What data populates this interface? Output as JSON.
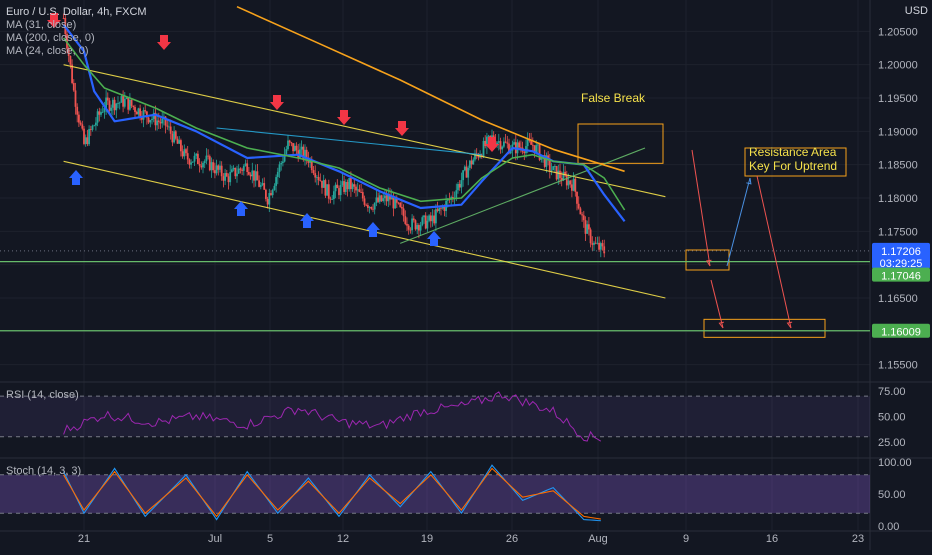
{
  "header": {
    "symbol_title": "Euro / U.S. Dollar, 4h, FXCM",
    "currency": "USD"
  },
  "legend": {
    "ma1": "MA (31, close)",
    "ma2": "MA (200, close, 0)",
    "ma3": "MA (24, close, 0)"
  },
  "price_axis": {
    "ticks": [
      "1.20500",
      "1.20000",
      "1.19500",
      "1.19000",
      "1.18500",
      "1.18000",
      "1.17500",
      "1.17000",
      "1.16500",
      "1.16000",
      "1.15500"
    ],
    "current_price": "1.17206",
    "countdown": "03:29:25",
    "support_1": "1.17046",
    "support_2": "1.16009"
  },
  "time_axis": {
    "labels": [
      "21",
      "Jul",
      "5",
      "12",
      "19",
      "26",
      "Aug",
      "9",
      "16",
      "23"
    ]
  },
  "annotations": {
    "false_break": "False Break",
    "resistance_1": "Resistance Area",
    "resistance_2": "Key For Uptrend"
  },
  "rsi": {
    "label": "RSI (14, close)",
    "ticks": [
      "75.00",
      "50.00",
      "25.00"
    ]
  },
  "stoch": {
    "label": "Stoch (14, 3, 3)",
    "ticks": [
      "100.00",
      "50.00",
      "0.00"
    ]
  },
  "colors": {
    "background": "#131722",
    "up_candle": "#26a69a",
    "down_candle": "#ef5350",
    "ma_fast": "#2962ff",
    "ma_slow": "#f7a21b",
    "ma_mid": "#4caf50",
    "channel": "#f5e14b",
    "support": "#66bb6a",
    "rsi_line": "#9c27b0",
    "stoch_k": "#2196f3",
    "stoch_d": "#ff6d00"
  },
  "chart_data": {
    "type": "candlestick",
    "symbol": "EURUSD",
    "timeframe": "4h",
    "ylim": [
      1.153,
      1.2085
    ],
    "ma_lines": [
      {
        "name": "MA (31, close)",
        "color": "#2962ff",
        "x": [
          "Jun 19",
          "Jun 21",
          "Jun 22",
          "Jun 24",
          "Jun 28",
          "Jul 2",
          "Jul 7",
          "Jul 12",
          "Jul 16",
          "Jul 20",
          "Jul 24",
          "Jul 28",
          "Jul 30",
          "Aug 2",
          "Aug 4",
          "Aug 6",
          "Aug 9",
          "Aug 11",
          "Aug 13"
        ],
        "y": [
          1.206,
          1.202,
          1.196,
          1.1915,
          1.1925,
          1.19,
          1.186,
          1.1865,
          1.184,
          1.181,
          1.1785,
          1.179,
          1.1825,
          1.1875,
          1.187,
          1.1855,
          1.185,
          1.1805,
          1.1765
        ]
      },
      {
        "name": "MA (24, close, 0)",
        "color": "#4caf50",
        "x": [
          "Jun 19",
          "Jun 21",
          "Jun 23",
          "Jun 28",
          "Jul 2",
          "Jul 7",
          "Jul 12",
          "Jul 16",
          "Jul 20",
          "Jul 24",
          "Jul 28",
          "Jul 30",
          "Aug 2",
          "Aug 4",
          "Aug 6",
          "Aug 9",
          "Aug 11",
          "Aug 13"
        ],
        "y": [
          1.204,
          1.2,
          1.1965,
          1.1935,
          1.1905,
          1.1875,
          1.186,
          1.1845,
          1.1815,
          1.1795,
          1.18,
          1.183,
          1.186,
          1.1865,
          1.1855,
          1.185,
          1.183,
          1.1782
        ]
      },
      {
        "name": "MA (200, close, 0)",
        "color": "#f7a21b",
        "x": [
          "Jul 6",
          "Jul 14",
          "Jul 22",
          "Jul 30",
          "Aug 6",
          "Aug 13"
        ],
        "y": [
          1.2087,
          1.2032,
          1.1977,
          1.1917,
          1.1873,
          1.184
        ]
      }
    ],
    "trendlines": [
      {
        "name": "upper channel",
        "x": [
          "Jun 19",
          "Aug 17"
        ],
        "y": [
          1.2,
          1.1802
        ]
      },
      {
        "name": "lower channel",
        "x": [
          "Jun 19",
          "Aug 17"
        ],
        "y": [
          1.1855,
          1.165
        ]
      },
      {
        "name": "inner resistance",
        "x": [
          "Jul 4",
          "Jul 30"
        ],
        "y": [
          1.1905,
          1.1865
        ]
      },
      {
        "name": "rising support",
        "x": [
          "Jul 22",
          "Aug 15"
        ],
        "y": [
          1.1732,
          1.1875
        ]
      }
    ],
    "horizontal_levels": [
      1.17046,
      1.16009
    ],
    "close_path": {
      "x": [
        "Jun 19",
        "Jun 20",
        "Jun 21",
        "Jun 23",
        "Jun 25",
        "Jun 27",
        "Jun 29",
        "Jul 1",
        "Jul 3",
        "Jul 5",
        "Jul 7",
        "Jul 9",
        "Jul 11",
        "Jul 13",
        "Jul 15",
        "Jul 17",
        "Jul 19",
        "Jul 21",
        "Jul 23",
        "Jul 25",
        "Jul 27",
        "Jul 29",
        "Jul 31",
        "Aug 2",
        "Aug 4",
        "Aug 6",
        "Aug 8",
        "Aug 9",
        "Aug 10",
        "Aug 11"
      ],
      "y": [
        1.207,
        1.196,
        1.188,
        1.194,
        1.1945,
        1.1925,
        1.191,
        1.186,
        1.1855,
        1.183,
        1.185,
        1.18,
        1.188,
        1.186,
        1.1805,
        1.182,
        1.179,
        1.18,
        1.176,
        1.1765,
        1.18,
        1.1855,
        1.189,
        1.1875,
        1.188,
        1.184,
        1.182,
        1.176,
        1.173,
        1.172
      ]
    },
    "rsi": {
      "x": [
        "Jun 19",
        "Jun 23",
        "Jun 28",
        "Jul 2",
        "Jul 7",
        "Jul 12",
        "Jul 16",
        "Jul 20",
        "Jul 24",
        "Jul 28",
        "Aug 1",
        "Aug 4",
        "Aug 6",
        "Aug 9",
        "Aug 11"
      ],
      "y": [
        36,
        52,
        44,
        50,
        42,
        58,
        45,
        40,
        55,
        60,
        72,
        62,
        55,
        31,
        28
      ],
      "levels": [
        70,
        30
      ]
    },
    "stoch": {
      "x": [
        "Jun 19",
        "Jun 21",
        "Jun 24",
        "Jun 27",
        "Jul 1",
        "Jul 4",
        "Jul 7",
        "Jul 10",
        "Jul 13",
        "Jul 16",
        "Jul 19",
        "Jul 22",
        "Jul 25",
        "Jul 28",
        "Jul 31",
        "Aug 3",
        "Aug 6",
        "Aug 9",
        "Aug 11"
      ],
      "k": [
        85,
        20,
        90,
        15,
        80,
        10,
        85,
        20,
        75,
        15,
        80,
        30,
        85,
        20,
        95,
        40,
        60,
        10,
        8
      ],
      "d": [
        80,
        25,
        85,
        20,
        75,
        15,
        80,
        25,
        70,
        20,
        75,
        35,
        80,
        25,
        90,
        45,
        55,
        15,
        10
      ],
      "levels": [
        80,
        20
      ]
    }
  }
}
